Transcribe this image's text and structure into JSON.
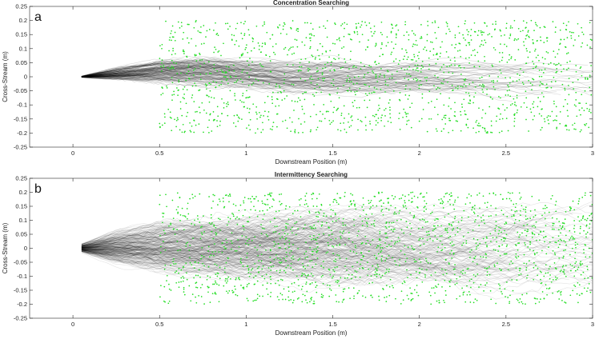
{
  "chart_data": [
    {
      "type": "line",
      "panel_letter": "a",
      "title": "Concentration Searching",
      "xlabel": "Downstream Position (m)",
      "ylabel": "Cross-Stream (m)",
      "xlim": [
        -0.25,
        3.0
      ],
      "ylim": [
        -0.25,
        0.25
      ],
      "xticks": [
        "0",
        "0.5",
        "1",
        "1.5",
        "2",
        "2.5",
        "3"
      ],
      "yticks": [
        "-0.25",
        "-0.2",
        "-0.15",
        "-0.1",
        "-0.05",
        "0",
        "0.05",
        "0.1",
        "0.15",
        "0.2",
        "0.25"
      ],
      "grid": false,
      "series": [
        {
          "color": "#000000",
          "x": [
            0.05,
            0.25,
            0.5,
            0.75,
            1.0,
            1.25,
            1.5,
            1.75,
            2.0,
            2.25,
            2.5,
            2.75,
            3.0
          ],
          "y": [
            0.0,
            0.01,
            0.02,
            0.02,
            0.01,
            0.0,
            0.0,
            -0.005,
            0.0,
            0.0,
            -0.01,
            -0.01,
            -0.02
          ],
          "spread": [
            0.003,
            0.03,
            0.06,
            0.07,
            0.07,
            0.08,
            0.09,
            0.08,
            0.08,
            0.08,
            0.09,
            0.09,
            0.1
          ]
        },
        {
          "color": "#22dd22",
          "x_range": [
            0.5,
            3.0
          ],
          "y_range": [
            -0.2,
            0.2
          ]
        }
      ]
    },
    {
      "type": "line",
      "panel_letter": "b",
      "title": "Intermittency Searching",
      "xlabel": "Downstream Position (m)",
      "ylabel": "Cross-Stream (m)",
      "xlim": [
        -0.25,
        3.0
      ],
      "ylim": [
        -0.25,
        0.25
      ],
      "xticks": [
        "0",
        "0.5",
        "1",
        "1.5",
        "2",
        "2.5",
        "3"
      ],
      "yticks": [
        "-0.25",
        "-0.2",
        "-0.15",
        "-0.1",
        "-0.05",
        "0",
        "0.05",
        "0.1",
        "0.15",
        "0.2",
        "0.25"
      ],
      "grid": false,
      "series": [
        {
          "color": "#000000",
          "x": [
            0.05,
            0.25,
            0.5,
            0.75,
            1.0,
            1.25,
            1.5,
            1.75,
            2.0,
            2.25,
            2.5,
            2.75,
            3.0
          ],
          "y": [
            0.0,
            0.0,
            0.0,
            0.0,
            0.0,
            0.0,
            0.0,
            0.0,
            0.0,
            0.0,
            0.0,
            0.0,
            0.0
          ],
          "spread": [
            0.02,
            0.08,
            0.12,
            0.14,
            0.16,
            0.17,
            0.18,
            0.19,
            0.19,
            0.2,
            0.2,
            0.2,
            0.2
          ]
        },
        {
          "color": "#22dd22",
          "x_range": [
            0.5,
            3.0
          ],
          "y_range": [
            -0.2,
            0.2
          ]
        }
      ]
    }
  ]
}
